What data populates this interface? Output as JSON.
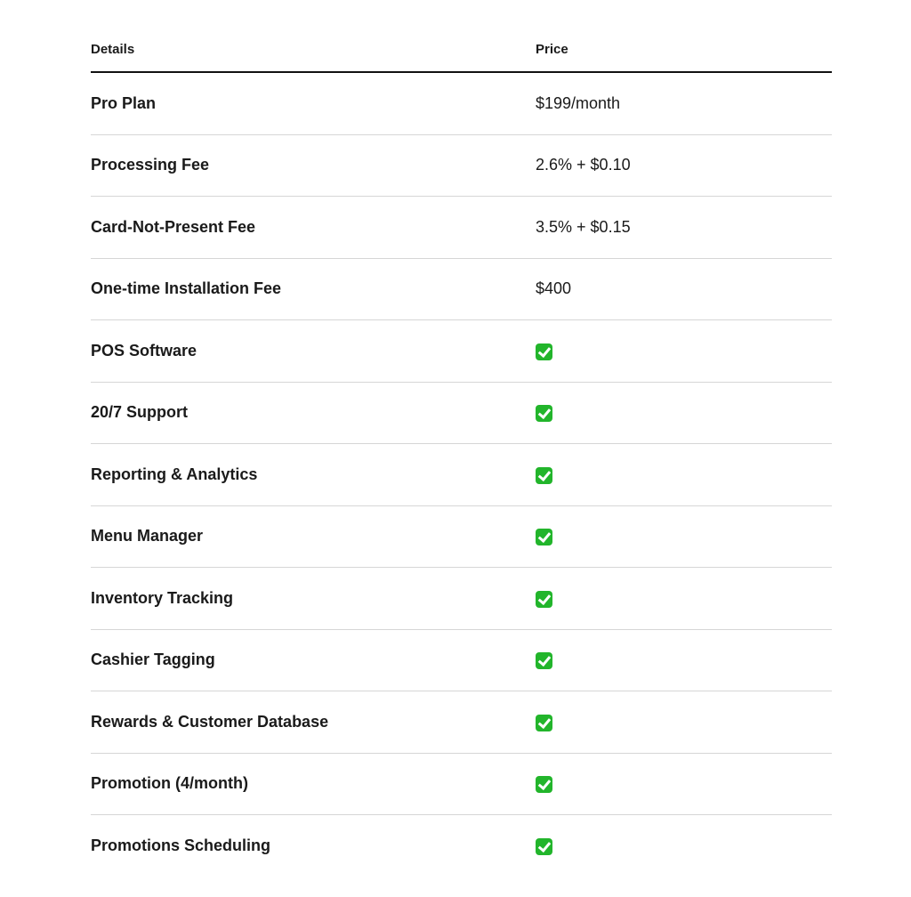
{
  "headers": {
    "details": "Details",
    "price": "Price"
  },
  "check_color": "#22b52b",
  "rows": [
    {
      "detail": "Pro Plan",
      "price": "$199/month"
    },
    {
      "detail": "Processing Fee",
      "price": "2.6% + $0.10"
    },
    {
      "detail": "Card-Not-Present Fee",
      "price": "3.5% + $0.15"
    },
    {
      "detail": "One-time Installation Fee",
      "price": "$400"
    },
    {
      "detail": "POS Software",
      "icon": "check-mark-icon"
    },
    {
      "detail": "20/7 Support",
      "icon": "check-mark-icon"
    },
    {
      "detail": "Reporting & Analytics",
      "icon": "check-mark-icon"
    },
    {
      "detail": "Menu Manager",
      "icon": "check-mark-icon"
    },
    {
      "detail": "Inventory Tracking",
      "icon": "check-mark-icon"
    },
    {
      "detail": "Cashier Tagging",
      "icon": "check-mark-icon"
    },
    {
      "detail": "Rewards & Customer Database",
      "icon": "check-mark-icon"
    },
    {
      "detail": "Promotion (4/month)",
      "icon": "check-mark-icon"
    },
    {
      "detail": "Promotions Scheduling",
      "icon": "check-mark-icon"
    }
  ]
}
